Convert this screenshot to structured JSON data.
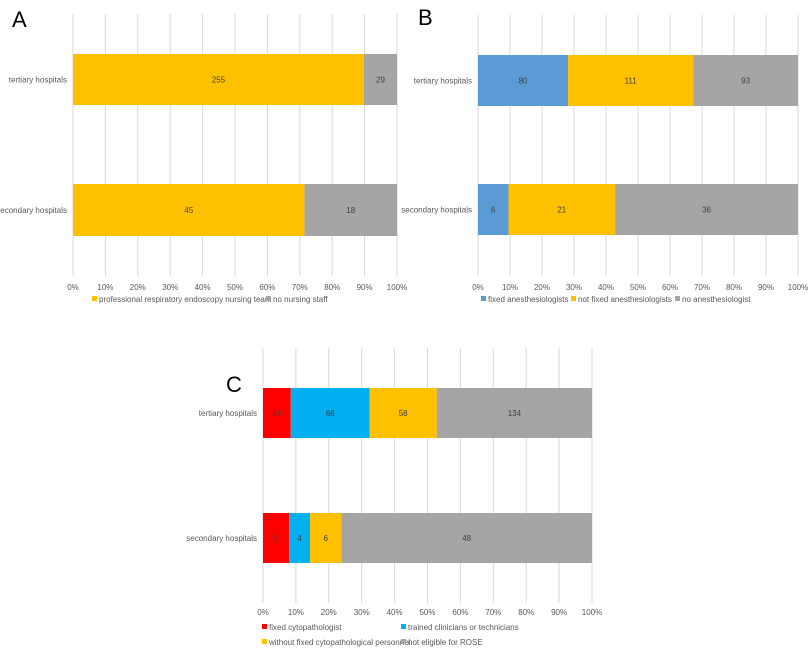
{
  "chart_data": [
    {
      "panel": "A",
      "type": "bar",
      "orientation": "horizontal",
      "stacked": "percent",
      "categories": [
        "tertiary hospitals",
        "secondary hospitals"
      ],
      "series": [
        {
          "name": "professional respiratory endoscopy nursing team",
          "color": "#FFC000",
          "values": [
            255,
            45
          ]
        },
        {
          "name": "no nursing staff",
          "color": "#A5A5A5",
          "values": [
            29,
            18
          ]
        }
      ],
      "xticks": [
        "0%",
        "10%",
        "20%",
        "30%",
        "40%",
        "50%",
        "60%",
        "70%",
        "80%",
        "90%",
        "100%"
      ],
      "xlim": [
        0,
        100
      ],
      "grid": true,
      "legend": "bottom"
    },
    {
      "panel": "B",
      "type": "bar",
      "orientation": "horizontal",
      "stacked": "percent",
      "categories": [
        "tertiary hospitals",
        "secondary hospitals"
      ],
      "series": [
        {
          "name": "fixed anesthesiologists",
          "color": "#5B9BD5",
          "values": [
            80,
            6
          ]
        },
        {
          "name": "not fixed anesthesiologists",
          "color": "#FFC000",
          "values": [
            111,
            21
          ]
        },
        {
          "name": "no anesthesiologist",
          "color": "#A5A5A5",
          "values": [
            93,
            36
          ]
        }
      ],
      "xticks": [
        "0%",
        "10%",
        "20%",
        "30%",
        "40%",
        "50%",
        "60%",
        "70%",
        "80%",
        "90%",
        "100%"
      ],
      "xlim": [
        0,
        100
      ],
      "grid": true,
      "legend": "bottom"
    },
    {
      "panel": "C",
      "type": "bar",
      "orientation": "horizontal",
      "stacked": "percent",
      "categories": [
        "tertiary hospitals",
        "secondary hospitals"
      ],
      "series": [
        {
          "name": "fixed cytopathologist",
          "color": "#FF0000",
          "values": [
            24,
            5
          ]
        },
        {
          "name": "trained clinicians or technicians",
          "color": "#00B0F0",
          "values": [
            68,
            4
          ]
        },
        {
          "name": "without fixed cytopathological personnel",
          "color": "#FFC000",
          "values": [
            58,
            6
          ]
        },
        {
          "name": "not eligible for ROSE",
          "color": "#A5A5A5",
          "values": [
            134,
            48
          ]
        }
      ],
      "xticks": [
        "0%",
        "10%",
        "20%",
        "30%",
        "40%",
        "50%",
        "60%",
        "70%",
        "80%",
        "90%",
        "100%"
      ],
      "xlim": [
        0,
        100
      ],
      "grid": true,
      "legend": "bottom"
    }
  ]
}
